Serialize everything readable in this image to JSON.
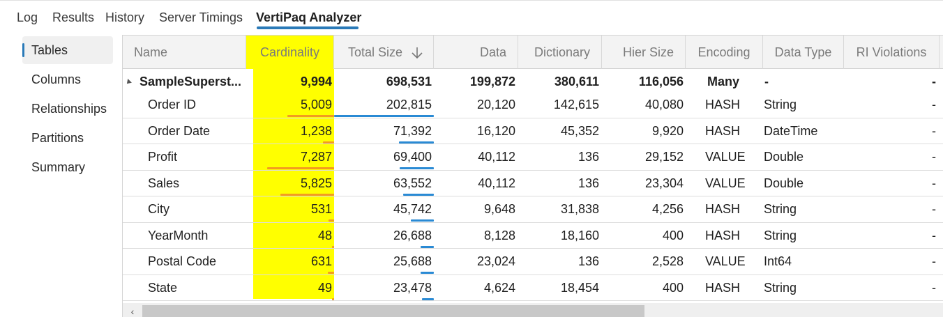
{
  "tabs": [
    {
      "label": "Log"
    },
    {
      "label": "Results"
    },
    {
      "label": "History"
    },
    {
      "label": "Server Timings"
    },
    {
      "label": "VertiPaq Analyzer"
    }
  ],
  "sidebar": {
    "items": [
      {
        "label": "Tables"
      },
      {
        "label": "Columns"
      },
      {
        "label": "Relationships"
      },
      {
        "label": "Partitions"
      },
      {
        "label": "Summary"
      }
    ],
    "active": "Tables"
  },
  "grid": {
    "headers": [
      "Name",
      "Cardinality",
      "Total Size",
      "Data",
      "Dictionary",
      "Hier Size",
      "Encoding",
      "Data Type",
      "RI Violations"
    ],
    "sorted_column": "Total Size",
    "sort_direction": "descending",
    "highlighted_column": "Cardinality",
    "highlight_color": "#ffff00",
    "table": {
      "name": "SampleSuperst...",
      "cardinality": "9,994",
      "total_size": "698,531",
      "data": "199,872",
      "dictionary": "380,611",
      "hier_size": "116,056",
      "encoding": "Many",
      "data_type": "-",
      "ri_violations": "-"
    },
    "rows": [
      {
        "name": "Order ID",
        "cardinality": "5,009",
        "total_size": "202,815",
        "data": "20,120",
        "dictionary": "142,615",
        "hier_size": "40,080",
        "encoding": "HASH",
        "data_type": "String",
        "ri_violations": "-",
        "size_fraction": 1.0,
        "card_fraction": 0.53
      },
      {
        "name": "Order Date",
        "cardinality": "1,238",
        "total_size": "71,392",
        "data": "16,120",
        "dictionary": "45,352",
        "hier_size": "9,920",
        "encoding": "HASH",
        "data_type": "DateTime",
        "ri_violations": "-",
        "size_fraction": 0.35,
        "card_fraction": 0.13
      },
      {
        "name": "Profit",
        "cardinality": "7,287",
        "total_size": "69,400",
        "data": "40,112",
        "dictionary": "136",
        "hier_size": "29,152",
        "encoding": "VALUE",
        "data_type": "Double",
        "ri_violations": "-",
        "size_fraction": 0.34,
        "card_fraction": 0.76
      },
      {
        "name": "Sales",
        "cardinality": "5,825",
        "total_size": "63,552",
        "data": "40,112",
        "dictionary": "136",
        "hier_size": "23,304",
        "encoding": "VALUE",
        "data_type": "Double",
        "ri_violations": "-",
        "size_fraction": 0.31,
        "card_fraction": 0.61
      },
      {
        "name": "City",
        "cardinality": "531",
        "total_size": "45,742",
        "data": "9,648",
        "dictionary": "31,838",
        "hier_size": "4,256",
        "encoding": "HASH",
        "data_type": "String",
        "ri_violations": "-",
        "size_fraction": 0.23,
        "card_fraction": 0.06
      },
      {
        "name": "YearMonth",
        "cardinality": "48",
        "total_size": "26,688",
        "data": "8,128",
        "dictionary": "18,160",
        "hier_size": "400",
        "encoding": "HASH",
        "data_type": "String",
        "ri_violations": "-",
        "size_fraction": 0.13,
        "card_fraction": 0.01
      },
      {
        "name": "Postal Code",
        "cardinality": "631",
        "total_size": "25,688",
        "data": "23,024",
        "dictionary": "136",
        "hier_size": "2,528",
        "encoding": "VALUE",
        "data_type": "Int64",
        "ri_violations": "-",
        "size_fraction": 0.13,
        "card_fraction": 0.07
      },
      {
        "name": "State",
        "cardinality": "49",
        "total_size": "23,478",
        "data": "4,624",
        "dictionary": "18,454",
        "hier_size": "400",
        "encoding": "HASH",
        "data_type": "String",
        "ri_violations": "-",
        "size_fraction": 0.12,
        "card_fraction": 0.01
      }
    ]
  },
  "colors": {
    "accent": "#2a7ab8",
    "size_bar": "#2a8ad4",
    "cardinality_bar": "#f39c1e"
  },
  "icons": {
    "sort": "arrow-down-icon",
    "expand": "collapse-triangle-icon",
    "scroll_left": "chevron-left-icon"
  },
  "scroll_left_glyph": "‹"
}
